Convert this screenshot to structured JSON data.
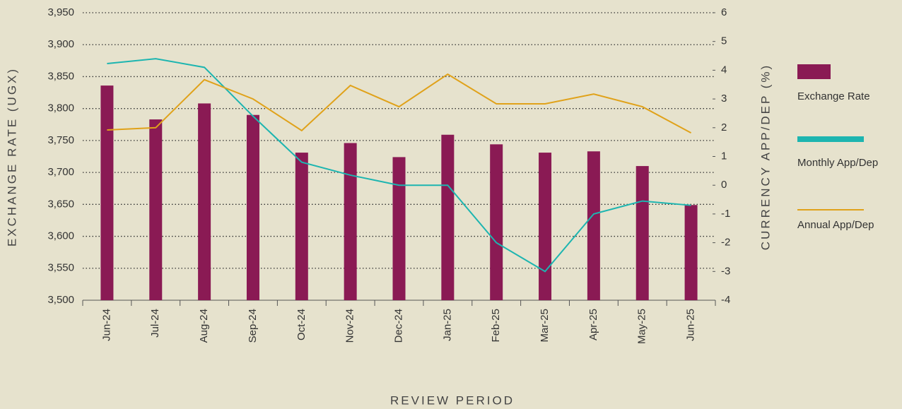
{
  "chart_data": {
    "type": "bar",
    "xlabel": "REVIEW PERIOD",
    "ylabel": "EXCHANGE RATE (UGX)",
    "y2label": "CURRENCY APP/DEP (%)",
    "categories": [
      "Jun-24",
      "Jul-24",
      "Aug-24",
      "Sep-24",
      "Oct-24",
      "Nov-24",
      "Dec-24",
      "Jan-25",
      "Feb-25",
      "Mar-25",
      "Apr-25",
      "May-25",
      "Jun-25"
    ],
    "series": [
      {
        "name": "Exchange Rate",
        "type": "bar",
        "color": "#8a1a54",
        "values": [
          3836,
          3783,
          3808,
          3790,
          3731,
          3746,
          3724,
          3759,
          3744,
          3731,
          3733,
          3710,
          3649
        ]
      },
      {
        "name": "Monthly App/Dep",
        "type": "line",
        "axis": "y2",
        "color": "#1db5b0",
        "values": [
          4.23,
          4.4,
          4.1,
          2.4,
          0.8,
          0.35,
          0,
          0,
          -2.0,
          -3.0,
          -1.0,
          -0.55,
          -0.7
        ]
      },
      {
        "name": "Annual App/Dep",
        "type": "line",
        "axis": "y2",
        "color": "#e0a21a",
        "values": [
          1.92,
          2.0,
          3.67,
          3.0,
          1.9,
          3.47,
          2.73,
          3.86,
          2.83,
          2.83,
          3.17,
          2.73,
          1.82
        ]
      }
    ],
    "ylim": [
      3500,
      3950
    ],
    "yticks": [
      {
        "value": 3500,
        "label": "3,500"
      },
      {
        "value": 3550,
        "label": "3,550"
      },
      {
        "value": 3600,
        "label": "3,600"
      },
      {
        "value": 3650,
        "label": "3,650"
      },
      {
        "value": 3700,
        "label": "3,700"
      },
      {
        "value": 3750,
        "label": "3,750"
      },
      {
        "value": 3800,
        "label": "3,800"
      },
      {
        "value": 3850,
        "label": "3,850"
      },
      {
        "value": 3900,
        "label": "3,900"
      },
      {
        "value": 3950,
        "label": "3,950"
      }
    ],
    "y2lim": [
      -4,
      6
    ],
    "y2ticks": [
      -4,
      -3,
      -2,
      -1,
      0,
      1,
      2,
      3,
      4,
      5,
      6
    ],
    "grid": true
  }
}
